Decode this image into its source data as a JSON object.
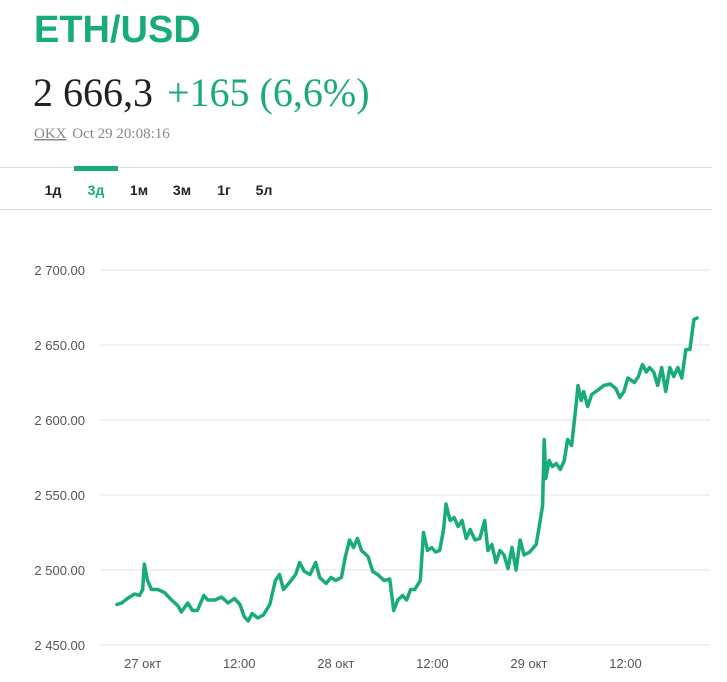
{
  "header": {
    "title": "ETH/USD",
    "price": "2 666,3",
    "change": "+165 (6,6%)",
    "source": "OKX",
    "timestamp": "Oct 29 20:08:16"
  },
  "tabs": [
    "1д",
    "3д",
    "1м",
    "3м",
    "1г",
    "5л"
  ],
  "active_tab": 1,
  "chart_data": {
    "type": "line",
    "color": "#1aab7d",
    "grid": true,
    "x": [
      -3.2,
      -2.6,
      -1.9,
      -1.0,
      -0.4,
      0,
      0.2,
      0.6,
      1.1,
      1.9,
      2.7,
      3.6,
      4.4,
      4.8,
      5.6,
      6.2,
      6.8,
      7.6,
      8.1,
      9.0,
      9.8,
      10.6,
      11.4,
      12.1,
      12.6,
      13.1,
      13.6,
      14.3,
      15.0,
      15.8,
      16.5,
      17.0,
      17.5,
      18.3,
      19.0,
      19.5,
      20.1,
      20.8,
      21.5,
      22.0,
      22.8,
      23.4,
      24.0,
      24.7,
      25.2,
      25.7,
      26.2,
      26.7,
      27.2,
      28.0,
      28.6,
      29.2,
      30.0,
      30.7,
      31.2,
      31.7,
      32.3,
      32.8,
      33.3,
      33.8,
      34.5,
      34.9,
      35.4,
      35.9,
      36.4,
      36.9,
      37.4,
      37.7,
      38.2,
      38.7,
      39.2,
      39.7,
      40.2,
      40.7,
      41.3,
      41.9,
      42.5,
      42.9,
      43.4,
      43.9,
      44.4,
      44.9,
      45.4,
      45.9,
      46.4,
      46.9,
      47.4,
      48.1,
      48.9,
      49.4,
      49.7,
      49.9,
      50.1,
      50.5,
      50.9,
      51.4,
      51.9,
      52.4,
      52.8,
      53.3,
      53.8,
      54.1,
      54.5,
      54.8,
      55.3,
      55.8,
      56.6,
      57.3,
      58.1,
      58.8,
      59.3,
      59.8,
      60.3,
      61.1,
      61.6,
      62.1,
      62.6,
      63.0,
      63.5,
      64.0,
      64.5,
      65.0,
      65.5,
      66.0,
      66.5,
      67.0,
      67.5,
      68.0,
      68.5,
      68.9
    ],
    "values": [
      2477,
      2478,
      2481,
      2484,
      2483,
      2487,
      2504,
      2493,
      2487,
      2487,
      2485,
      2480,
      2476,
      2472,
      2478,
      2473,
      2473,
      2483,
      2480,
      2480,
      2482,
      2478,
      2481,
      2477,
      2469,
      2466,
      2471,
      2468,
      2470,
      2477,
      2493,
      2497,
      2487,
      2492,
      2497,
      2505,
      2499,
      2497,
      2505,
      2495,
      2491,
      2495,
      2493,
      2495,
      2509,
      2520,
      2515,
      2521,
      2513,
      2509,
      2499,
      2497,
      2493,
      2494,
      2473,
      2480,
      2483,
      2480,
      2487,
      2487,
      2493,
      2525,
      2513,
      2515,
      2512,
      2513,
      2527,
      2544,
      2533,
      2535,
      2529,
      2533,
      2521,
      2527,
      2520,
      2521,
      2533,
      2513,
      2517,
      2505,
      2513,
      2510,
      2501,
      2515,
      2500,
      2520,
      2510,
      2512,
      2517,
      2533,
      2543,
      2587,
      2561,
      2573,
      2569,
      2571,
      2567,
      2573,
      2587,
      2583,
      2607,
      2623,
      2613,
      2619,
      2609,
      2617,
      2620,
      2623,
      2624,
      2621,
      2615,
      2619,
      2628,
      2625,
      2629,
      2637,
      2632,
      2635,
      2632,
      2623,
      2635,
      2619,
      2635,
      2629,
      2635,
      2628,
      2647,
      2647,
      2667,
      2668
    ],
    "xlim": [
      -5.3,
      70.5
    ],
    "xticks": [
      {
        "value": 0,
        "label": "27 окт"
      },
      {
        "value": 12,
        "label": "12:00"
      },
      {
        "value": 24,
        "label": "28 окт"
      },
      {
        "value": 36,
        "label": "12:00"
      },
      {
        "value": 48,
        "label": "29 окт"
      },
      {
        "value": 60,
        "label": "12:00"
      }
    ],
    "ylim": [
      2450,
      2700
    ],
    "yticks": [
      {
        "value": 2700,
        "label": "2 700.00"
      },
      {
        "value": 2650,
        "label": "2 650.00"
      },
      {
        "value": 2600,
        "label": "2 600.00"
      },
      {
        "value": 2550,
        "label": "2 550.00"
      },
      {
        "value": 2500,
        "label": "2 500.00"
      },
      {
        "value": 2450,
        "label": "2 450.00"
      }
    ]
  }
}
